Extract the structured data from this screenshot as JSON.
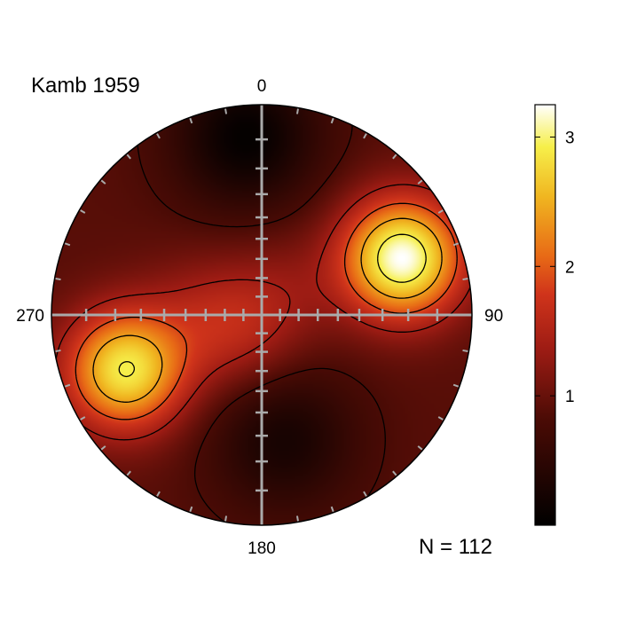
{
  "chart_data": {
    "type": "heatmap",
    "projection": "stereonet",
    "title": "Kamb 1959",
    "azimuth_labels": [
      {
        "azimuth": 0,
        "text": "0"
      },
      {
        "azimuth": 90,
        "text": "90"
      },
      {
        "azimuth": 180,
        "text": "180"
      },
      {
        "azimuth": 270,
        "text": "270"
      }
    ],
    "sample_note": "N = 112",
    "colorbar": {
      "range": [
        0,
        3.25
      ],
      "ticks": [
        1,
        2,
        3
      ],
      "colormap": "afmhot",
      "legend_placement": "right"
    },
    "contour_levels": [
      0.8,
      1.4,
      1.9,
      2.4,
      2.9
    ],
    "density_peaks": [
      {
        "azimuth": 68,
        "plunge_fraction": 0.72,
        "value": 3.25
      },
      {
        "azimuth": 248,
        "plunge_fraction": 0.7,
        "value": 2.9
      },
      {
        "azimuth": 230,
        "plunge_fraction": 0.15,
        "value": 1.4
      },
      {
        "azimuth": 275,
        "plunge_fraction": 0.3,
        "value": 1.2
      },
      {
        "azimuth": 45,
        "plunge_fraction": 0.15,
        "value": 1.2
      }
    ],
    "density_lows": [
      {
        "azimuth": 355,
        "plunge_fraction": 0.85,
        "value": 0.05
      },
      {
        "azimuth": 170,
        "plunge_fraction": 0.6,
        "value": 0.25
      }
    ]
  },
  "colors": {
    "axis_cross": "#aaaaaa",
    "contour_line": "#000000",
    "frame": "#000000"
  }
}
